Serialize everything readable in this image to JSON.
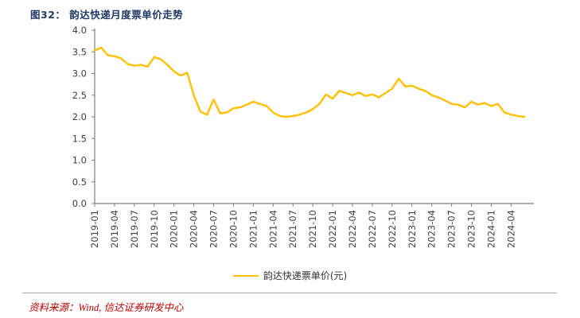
{
  "header": {
    "title": "图32： 韵达快递月度票单价走势"
  },
  "legend": {
    "label": "韵达快递票单价(元)"
  },
  "footer": {
    "source": "资料来源：Wind, 信达证券研发中心"
  },
  "colors": {
    "line": "#FFC000",
    "title": "#1F3864",
    "source": "#C00000",
    "axis": "#7f7f7f",
    "label": "#404040"
  },
  "chart_data": {
    "type": "line",
    "title": "韵达快递月度票单价走势",
    "xlabel": "",
    "ylabel": "",
    "ylim": [
      0,
      4
    ],
    "ytick_step": 0.5,
    "xtick_every": 3,
    "grid": false,
    "legend_position": "bottom",
    "x": [
      "2019-01",
      "2019-02",
      "2019-03",
      "2019-04",
      "2019-05",
      "2019-06",
      "2019-07",
      "2019-08",
      "2019-09",
      "2019-10",
      "2019-11",
      "2019-12",
      "2020-01",
      "2020-02",
      "2020-03",
      "2020-04",
      "2020-05",
      "2020-06",
      "2020-07",
      "2020-08",
      "2020-09",
      "2020-10",
      "2020-11",
      "2020-12",
      "2021-01",
      "2021-02",
      "2021-03",
      "2021-04",
      "2021-05",
      "2021-06",
      "2021-07",
      "2021-08",
      "2021-09",
      "2021-10",
      "2021-11",
      "2021-12",
      "2022-01",
      "2022-02",
      "2022-03",
      "2022-04",
      "2022-05",
      "2022-06",
      "2022-07",
      "2022-08",
      "2022-09",
      "2022-10",
      "2022-11",
      "2022-12",
      "2023-01",
      "2023-02",
      "2023-03",
      "2023-04",
      "2023-05",
      "2023-06",
      "2023-07",
      "2023-08",
      "2023-09",
      "2023-10",
      "2023-11",
      "2023-12",
      "2024-01",
      "2024-02",
      "2024-03",
      "2024-04",
      "2024-05",
      "2024-06"
    ],
    "series": [
      {
        "name": "韵达快递票单价(元)",
        "values": [
          3.53,
          3.6,
          3.42,
          3.4,
          3.35,
          3.22,
          3.18,
          3.2,
          3.16,
          3.38,
          3.33,
          3.2,
          3.05,
          2.95,
          3.02,
          2.5,
          2.12,
          2.05,
          2.4,
          2.08,
          2.1,
          2.2,
          2.22,
          2.28,
          2.35,
          2.3,
          2.25,
          2.1,
          2.02,
          2.0,
          2.02,
          2.05,
          2.1,
          2.18,
          2.3,
          2.52,
          2.42,
          2.6,
          2.55,
          2.5,
          2.56,
          2.48,
          2.52,
          2.45,
          2.55,
          2.65,
          2.88,
          2.7,
          2.72,
          2.65,
          2.6,
          2.5,
          2.45,
          2.38,
          2.3,
          2.28,
          2.22,
          2.35,
          2.28,
          2.32,
          2.25,
          2.3,
          2.1,
          2.05,
          2.02,
          2.0
        ]
      }
    ]
  }
}
